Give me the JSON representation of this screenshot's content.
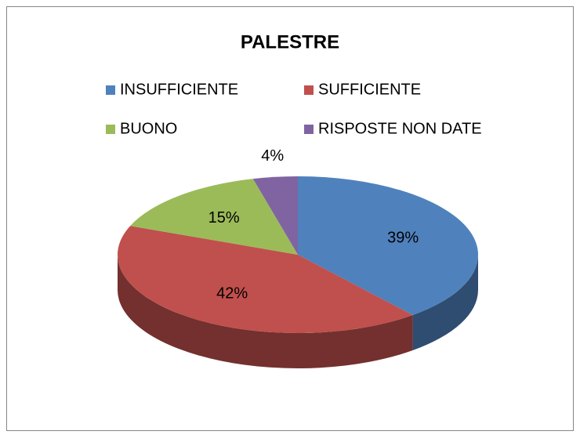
{
  "chart_data": {
    "type": "pie3d",
    "title": "PALESTRE",
    "categories": [
      "INSUFFICIENTE",
      "SUFFICIENTE",
      "BUONO",
      "RISPOSTE NON DATE"
    ],
    "values": [
      39,
      42,
      15,
      4
    ],
    "value_labels": [
      "39%",
      "42%",
      "15%",
      "4%"
    ],
    "colors": [
      "#4f81bd",
      "#c0504d",
      "#9bbb59",
      "#8064a2"
    ],
    "legend": "top"
  }
}
